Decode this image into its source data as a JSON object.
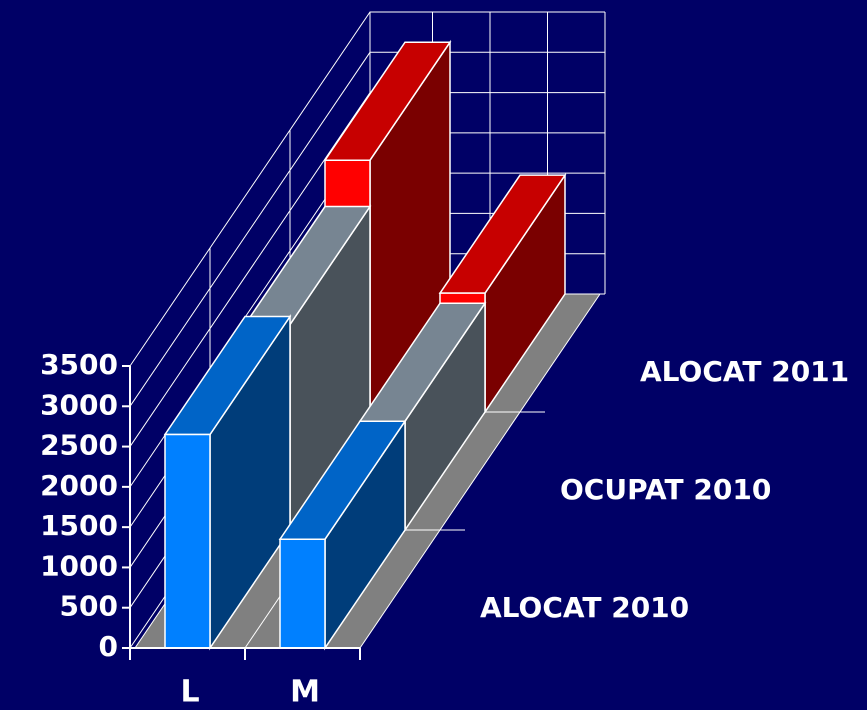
{
  "chart_data": {
    "type": "bar3d",
    "categories": [
      "L",
      "M"
    ],
    "series": [
      {
        "name": "ALOCAT 2010",
        "color": "#0080ff",
        "values": [
          2650,
          1350
        ]
      },
      {
        "name": "OCUPAT 2010",
        "color": "#99aabb",
        "values": [
          2550,
          1350
        ]
      },
      {
        "name": "ALOCAT 2011",
        "color": "#ff0000",
        "values": [
          3125,
          1475
        ]
      }
    ],
    "ylim": [
      0,
      3500
    ],
    "yticks": [
      0,
      500,
      1000,
      1500,
      2000,
      2500,
      3000,
      3500
    ],
    "grid": true
  }
}
